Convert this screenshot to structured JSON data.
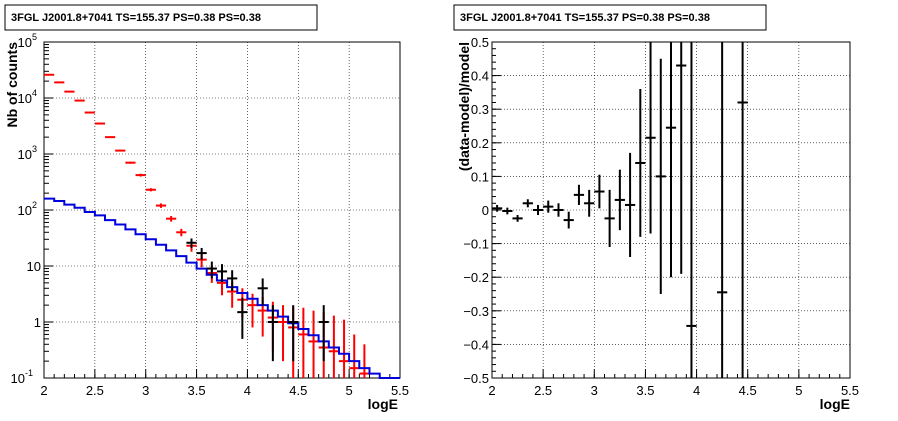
{
  "chart_data": [
    {
      "type": "scatter",
      "title": "3FGL J2001.8+7041 TS=155.37 PS=0.38 PS=0.38",
      "xlabel": "logE",
      "ylabel": "Nb of counts",
      "xlim": [
        2,
        5.5
      ],
      "ylim": [
        0.1,
        100000
      ],
      "y_scale": "log",
      "grid": true,
      "x_ticks": [
        "2",
        "2.5",
        "3",
        "3.5",
        "4",
        "4.5",
        "5",
        "5.5"
      ],
      "y_ticks": [
        {
          "value": 0.1,
          "label": "10",
          "sup": "-1"
        },
        {
          "value": 1,
          "label": "1",
          "sup": ""
        },
        {
          "value": 10,
          "label": "10",
          "sup": ""
        },
        {
          "value": 100,
          "label": "10",
          "sup": "2"
        },
        {
          "value": 1000,
          "label": "10",
          "sup": "3"
        },
        {
          "value": 10000,
          "label": "10",
          "sup": "4"
        },
        {
          "value": 100000,
          "label": "10",
          "sup": "5"
        }
      ],
      "series": [
        {
          "color": "#ff0000",
          "style": "errorbar",
          "points": [
            {
              "x": 2.05,
              "y": 26000,
              "lo": 25700,
              "hi": 26300
            },
            {
              "x": 2.15,
              "y": 19000,
              "lo": 18700,
              "hi": 19300
            },
            {
              "x": 2.25,
              "y": 13000,
              "lo": 12800,
              "hi": 13200
            },
            {
              "x": 2.35,
              "y": 9000,
              "lo": 8850,
              "hi": 9150
            },
            {
              "x": 2.45,
              "y": 5500,
              "lo": 5400,
              "hi": 5600
            },
            {
              "x": 2.55,
              "y": 3500,
              "lo": 3420,
              "hi": 3580
            },
            {
              "x": 2.65,
              "y": 2000,
              "lo": 1950,
              "hi": 2050
            },
            {
              "x": 2.75,
              "y": 1150,
              "lo": 1110,
              "hi": 1190
            },
            {
              "x": 2.85,
              "y": 700,
              "lo": 670,
              "hi": 730
            },
            {
              "x": 2.95,
              "y": 420,
              "lo": 395,
              "hi": 445
            },
            {
              "x": 3.05,
              "y": 230,
              "lo": 215,
              "hi": 245
            },
            {
              "x": 3.15,
              "y": 120,
              "lo": 109,
              "hi": 131
            },
            {
              "x": 3.25,
              "y": 70,
              "lo": 62,
              "hi": 78
            },
            {
              "x": 3.35,
              "y": 40,
              "lo": 34,
              "hi": 46
            },
            {
              "x": 3.45,
              "y": 23,
              "lo": 18,
              "hi": 28
            },
            {
              "x": 3.55,
              "y": 13,
              "lo": 9.5,
              "hi": 16.5
            },
            {
              "x": 3.65,
              "y": 7.5,
              "lo": 5,
              "hi": 10
            },
            {
              "x": 3.75,
              "y": 5.0,
              "lo": 3,
              "hi": 7
            },
            {
              "x": 3.85,
              "y": 3.5,
              "lo": 1.8,
              "hi": 5.2
            },
            {
              "x": 3.95,
              "y": 2.5,
              "lo": 1.2,
              "hi": 4
            },
            {
              "x": 4.05,
              "y": 2.0,
              "lo": 0.8,
              "hi": 3.2
            },
            {
              "x": 4.15,
              "y": 1.6,
              "lo": 0.55,
              "hi": 2.8
            },
            {
              "x": 4.25,
              "y": 1.2,
              "lo": 0.3,
              "hi": 2.3
            },
            {
              "x": 4.35,
              "y": 1.0,
              "lo": 0.2,
              "hi": 2.0
            },
            {
              "x": 4.45,
              "y": 0.8,
              "lo": 0.1,
              "hi": 1.9
            },
            {
              "x": 4.55,
              "y": 0.6,
              "lo": 0.1,
              "hi": 1.8
            },
            {
              "x": 4.65,
              "y": 0.45,
              "lo": 0.1,
              "hi": 1.6
            },
            {
              "x": 4.75,
              "y": 0.35,
              "lo": 0.1,
              "hi": 1.5
            },
            {
              "x": 4.85,
              "y": 0.3,
              "lo": 0.1,
              "hi": 1.3
            },
            {
              "x": 4.95,
              "y": 0.2,
              "lo": 0.1,
              "hi": 1.1
            },
            {
              "x": 5.05,
              "y": 0.15,
              "lo": 0.1,
              "hi": 0.6
            },
            {
              "x": 5.15,
              "y": 0.12,
              "lo": 0.1,
              "hi": 0.4
            }
          ]
        },
        {
          "color": "#0000dd",
          "style": "step",
          "edges": [
            2.0,
            2.1,
            2.2,
            2.3,
            2.4,
            2.5,
            2.6,
            2.7,
            2.8,
            2.9,
            3.0,
            3.1,
            3.2,
            3.3,
            3.4,
            3.5,
            3.6,
            3.7,
            3.8,
            3.9,
            4.0,
            4.1,
            4.2,
            4.3,
            4.4,
            4.5,
            4.6,
            4.7,
            4.8,
            4.9,
            5.0,
            5.1,
            5.2,
            5.3,
            5.4,
            5.5
          ],
          "values": [
            160,
            145,
            125,
            110,
            92,
            80,
            66,
            55,
            45,
            37,
            30,
            24,
            19,
            15,
            11.5,
            9,
            7,
            5.5,
            4.2,
            3.3,
            2.6,
            2.0,
            1.6,
            1.25,
            0.95,
            0.75,
            0.58,
            0.45,
            0.35,
            0.27,
            0.2,
            0.15,
            0.12,
            0.1,
            0.1
          ]
        },
        {
          "color": "#000000",
          "style": "errorbar",
          "points": [
            {
              "x": 3.45,
              "y": 26,
              "lo": 21,
              "hi": 31
            },
            {
              "x": 3.55,
              "y": 17,
              "lo": 13,
              "hi": 21
            },
            {
              "x": 3.65,
              "y": 9,
              "lo": 6,
              "hi": 12
            },
            {
              "x": 3.75,
              "y": 8,
              "lo": 5.2,
              "hi": 10.8
            },
            {
              "x": 3.85,
              "y": 6,
              "lo": 3.6,
              "hi": 8.4
            },
            {
              "x": 3.95,
              "y": 1.5,
              "lo": 0.5,
              "hi": 2.7
            },
            {
              "x": 4.15,
              "y": 4,
              "lo": 2,
              "hi": 6
            },
            {
              "x": 4.25,
              "y": 1.0,
              "lo": 0.2,
              "hi": 2.0
            },
            {
              "x": 4.45,
              "y": 1.0,
              "lo": 0.2,
              "hi": 2.0
            },
            {
              "x": 4.75,
              "y": 1.0,
              "lo": 0.2,
              "hi": 2.0
            }
          ]
        }
      ]
    },
    {
      "type": "scatter",
      "title": "3FGL J2001.8+7041 TS=155.37 PS=0.38 PS=0.38",
      "xlabel": "logE",
      "ylabel": "(data-model)/model",
      "xlim": [
        2,
        5.5
      ],
      "ylim": [
        -0.5,
        0.5
      ],
      "y_scale": "linear",
      "grid": true,
      "x_ticks": [
        "2",
        "2.5",
        "3",
        "3.5",
        "4",
        "4.5",
        "5",
        "5.5"
      ],
      "y_ticks": [
        "-0.5",
        "-0.4",
        "-0.3",
        "-0.2",
        "-0.1",
        "0",
        "0.1",
        "0.2",
        "0.3",
        "0.4",
        "0.5"
      ],
      "series": [
        {
          "color": "#000000",
          "style": "errorbar",
          "points": [
            {
              "x": 2.05,
              "y": 0.005,
              "lo": -0.005,
              "hi": 0.015
            },
            {
              "x": 2.15,
              "y": -0.003,
              "lo": -0.013,
              "hi": 0.007
            },
            {
              "x": 2.25,
              "y": -0.025,
              "lo": -0.035,
              "hi": -0.015
            },
            {
              "x": 2.35,
              "y": 0.02,
              "lo": 0.008,
              "hi": 0.032
            },
            {
              "x": 2.45,
              "y": 0.0,
              "lo": -0.015,
              "hi": 0.015
            },
            {
              "x": 2.55,
              "y": 0.01,
              "lo": -0.008,
              "hi": 0.028
            },
            {
              "x": 2.65,
              "y": 0.0,
              "lo": -0.02,
              "hi": 0.02
            },
            {
              "x": 2.75,
              "y": -0.03,
              "lo": -0.055,
              "hi": -0.005
            },
            {
              "x": 2.85,
              "y": 0.045,
              "lo": 0.015,
              "hi": 0.075
            },
            {
              "x": 2.95,
              "y": 0.02,
              "lo": -0.02,
              "hi": 0.06
            },
            {
              "x": 3.05,
              "y": 0.055,
              "lo": 0.005,
              "hi": 0.105
            },
            {
              "x": 3.15,
              "y": -0.025,
              "lo": -0.11,
              "hi": 0.06
            },
            {
              "x": 3.25,
              "y": 0.03,
              "lo": -0.06,
              "hi": 0.12
            },
            {
              "x": 3.35,
              "y": 0.015,
              "lo": -0.14,
              "hi": 0.17
            },
            {
              "x": 3.45,
              "y": 0.14,
              "lo": -0.08,
              "hi": 0.36
            },
            {
              "x": 3.55,
              "y": 0.215,
              "lo": -0.07,
              "hi": 0.5
            },
            {
              "x": 3.65,
              "y": 0.1,
              "lo": -0.25,
              "hi": 0.45
            },
            {
              "x": 3.75,
              "y": 0.245,
              "lo": -0.2,
              "hi": 0.5
            },
            {
              "x": 3.85,
              "y": 0.43,
              "lo": -0.19,
              "hi": 0.5
            },
            {
              "x": 3.95,
              "y": -0.345,
              "lo": -0.5,
              "hi": 0.5
            },
            {
              "x": 4.25,
              "y": -0.245,
              "lo": -0.5,
              "hi": 0.5
            },
            {
              "x": 4.45,
              "y": 0.32,
              "lo": -0.5,
              "hi": 0.5
            }
          ]
        }
      ]
    }
  ],
  "colors": {
    "model_line": "#0000dd",
    "counts_red": "#ff0000",
    "data_black": "#000000"
  }
}
